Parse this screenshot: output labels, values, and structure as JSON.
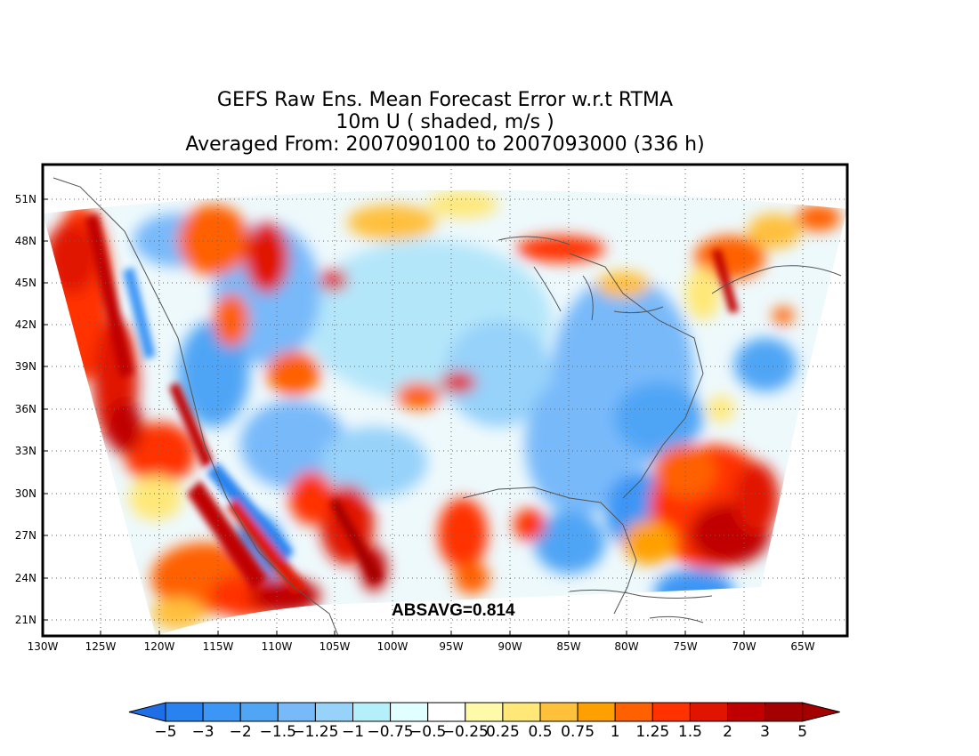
{
  "title": {
    "line1": "GEFS Raw Ens. Mean Forecast Error w.r.t RTMA",
    "line2": "10m U ( shaded, m/s )",
    "line3": "Averaged From: 2007090100 to 2007093000 (336 h)"
  },
  "map": {
    "lat_labels": [
      "51N",
      "48N",
      "45N",
      "42N",
      "39N",
      "36N",
      "33N",
      "30N",
      "27N",
      "24N",
      "21N"
    ],
    "lon_labels": [
      "130W",
      "125W",
      "120W",
      "115W",
      "110W",
      "105W",
      "100W",
      "95W",
      "90W",
      "85W",
      "80W",
      "75W",
      "70W",
      "65W"
    ],
    "grid": "dotted",
    "absavg_label": "ABSAVG=0.814"
  },
  "colorbar": {
    "labels": [
      "-5",
      "-3",
      "-2",
      "-1.5",
      "-1.25",
      "-1",
      "-0.75",
      "-0.5",
      "-0.25",
      "0.25",
      "0.5",
      "0.75",
      "1",
      "1.25",
      "1.5",
      "2",
      "3",
      "5"
    ],
    "colors": [
      "#1e6ee6",
      "#2882f0",
      "#3c96f5",
      "#50a5f5",
      "#78b9fa",
      "#96d2fa",
      "#b4f0fa",
      "#e1ffff",
      "#ffffff",
      "#fffaaa",
      "#ffe878",
      "#ffc03c",
      "#ffa000",
      "#ff6000",
      "#ff3200",
      "#e11400",
      "#c00000",
      "#a50000"
    ],
    "under_color": "#1e6ee6",
    "over_color": "#a50000"
  }
}
